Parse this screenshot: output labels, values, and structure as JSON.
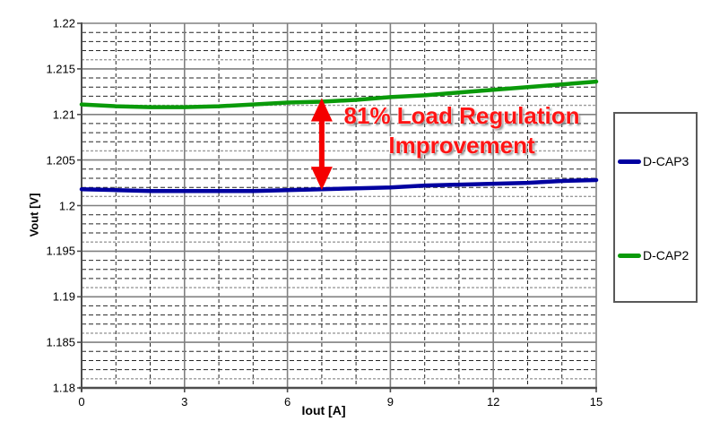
{
  "chart_data": {
    "type": "line",
    "title": "",
    "xlabel": "Iout [A]",
    "ylabel": "Vout [V]",
    "xlim": [
      0,
      15
    ],
    "ylim": [
      1.18,
      1.22
    ],
    "x_major_tick_step": 3,
    "x_minor_tick_step": 1,
    "y_major_tick_step": 0.005,
    "y_minor_tick_step": 0.001,
    "grid": "major solid gray, minor dashed black",
    "legend_position": "right",
    "x_ticks": [
      {
        "value": 0,
        "label": "0"
      },
      {
        "value": 3,
        "label": "3"
      },
      {
        "value": 6,
        "label": "6"
      },
      {
        "value": 9,
        "label": "9"
      },
      {
        "value": 12,
        "label": "12"
      },
      {
        "value": 15,
        "label": "15"
      }
    ],
    "y_ticks": [
      {
        "value": 1.22,
        "label": "1.22"
      },
      {
        "value": 1.215,
        "label": "1.215"
      },
      {
        "value": 1.21,
        "label": "1.21"
      },
      {
        "value": 1.205,
        "label": "1.205"
      },
      {
        "value": 1.2,
        "label": "1.2"
      },
      {
        "value": 1.195,
        "label": "1.195"
      },
      {
        "value": 1.19,
        "label": "1.19"
      },
      {
        "value": 1.185,
        "label": "1.185"
      },
      {
        "value": 1.18,
        "label": "1.18"
      }
    ],
    "x": [
      0,
      1,
      2,
      3,
      4,
      5,
      6,
      7,
      8,
      9,
      10,
      11,
      12,
      13,
      14,
      15
    ],
    "series": [
      {
        "name": "D-CAP3",
        "color": "#0000A0",
        "values": [
          1.2018,
          1.2017,
          1.2016,
          1.2016,
          1.2016,
          1.2016,
          1.2017,
          1.2018,
          1.2019,
          1.202,
          1.2022,
          1.2023,
          1.2024,
          1.2025,
          1.2027,
          1.2028
        ]
      },
      {
        "name": "D-CAP2",
        "color": "#0A9A0A",
        "values": [
          1.2111,
          1.2109,
          1.2108,
          1.2108,
          1.2109,
          1.2111,
          1.2113,
          1.2114,
          1.2116,
          1.2119,
          1.2121,
          1.2124,
          1.2127,
          1.213,
          1.2133,
          1.2136
        ]
      }
    ],
    "annotation": {
      "line1": "81% Load Regulation",
      "line2": "Improvement",
      "color": "#FF1414"
    },
    "arrow": {
      "x": 7,
      "from_value": 1.2018,
      "to_value": 1.2114,
      "color": "#F50000",
      "style": "vertical double-headed"
    }
  }
}
